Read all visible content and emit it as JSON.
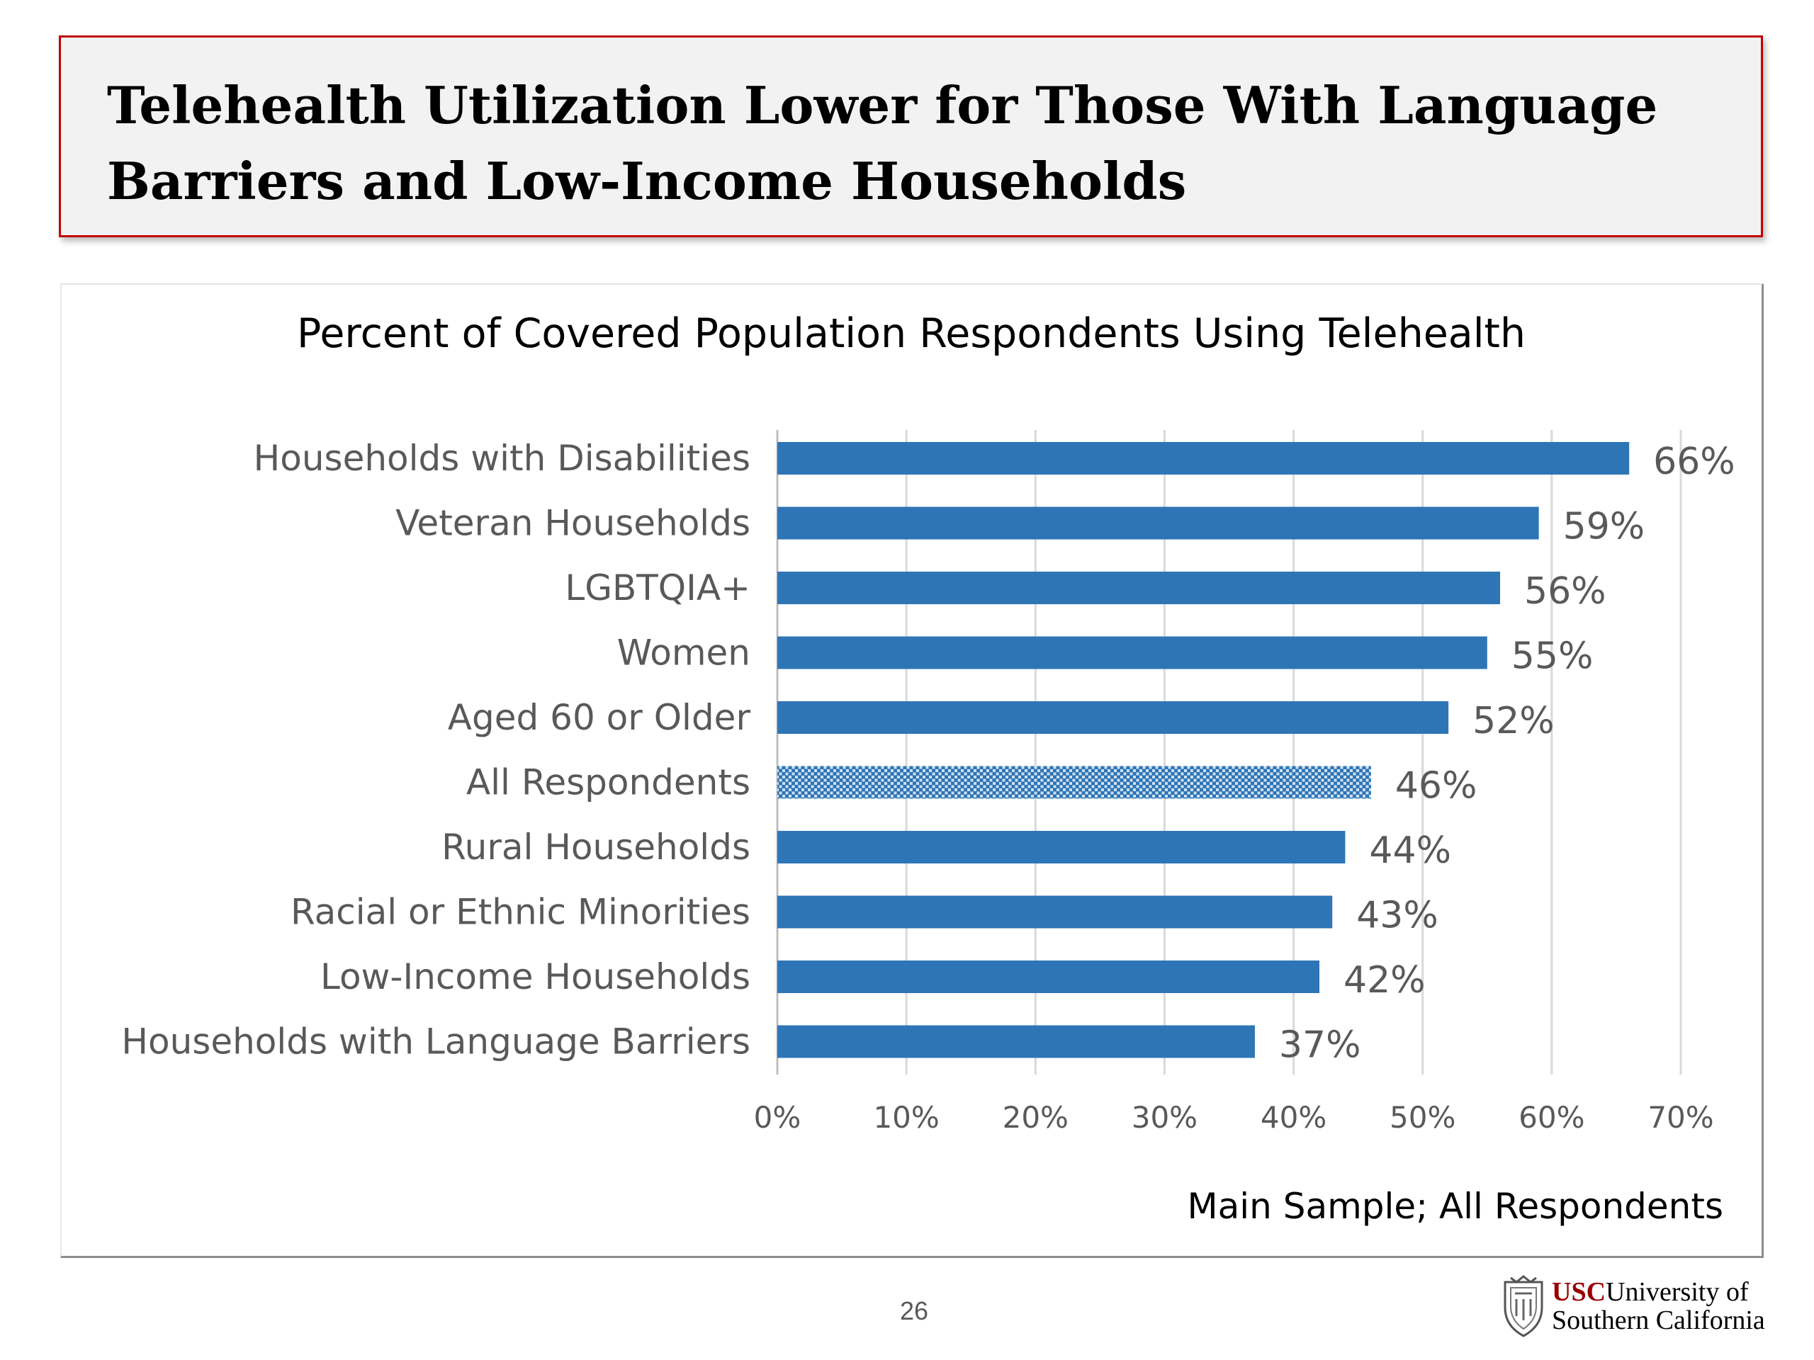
{
  "slide": {
    "title": "Telehealth Utilization Lower for Those With Language Barriers and Low-Income Households",
    "page_number": "26",
    "logo": {
      "usc": "USC",
      "line1_rest": "University of",
      "line2": "Southern California"
    }
  },
  "chart_data": {
    "type": "bar",
    "orientation": "horizontal",
    "title": "Percent of Covered Population Respondents Using Telehealth",
    "footnote": "Main Sample; All Respondents",
    "categories": [
      "Households with Disabilities",
      "Veteran Households",
      "LGBTQIA+",
      "Women",
      "Aged 60 or Older",
      "All Respondents",
      "Rural Households",
      "Racial or Ethnic Minorities",
      "Low-Income Households",
      "Households with Language Barriers"
    ],
    "values": [
      66,
      59,
      56,
      55,
      52,
      46,
      44,
      43,
      42,
      37
    ],
    "data_labels": [
      "66%",
      "59%",
      "56%",
      "55%",
      "52%",
      "46%",
      "44%",
      "43%",
      "42%",
      "37%"
    ],
    "highlight_category": "All Respondents",
    "xlim": [
      0,
      70
    ],
    "x_ticks": [
      0,
      10,
      20,
      30,
      40,
      50,
      60,
      70
    ],
    "x_tick_labels": [
      "0%",
      "10%",
      "20%",
      "30%",
      "40%",
      "50%",
      "60%",
      "70%"
    ],
    "grid": "vertical",
    "legend": "none",
    "colors": {
      "bar": "#2e75b6",
      "highlight_bar": "#2e75b6",
      "gridline": "#d9d9d9",
      "label_text": "#595959"
    }
  }
}
